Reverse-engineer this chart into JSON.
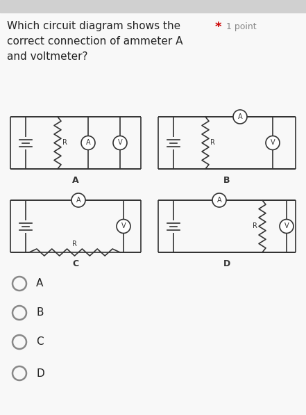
{
  "title_line1": "Which circuit diagram shows the",
  "title_line2": "correct connection of ammeter A",
  "title_line3": "and voltmeter?",
  "star_text": "*",
  "point_text": "1 point",
  "bg_color": "#f8f8f8",
  "bg_top": "#e8e8e8",
  "line_color": "#333333",
  "radio_color": "#888888",
  "options": [
    "A",
    "B",
    "C",
    "D"
  ],
  "diagram_labels": [
    "A",
    "B",
    "C",
    "D"
  ],
  "font_size_title": 11,
  "font_size_label": 9,
  "font_size_option": 11
}
